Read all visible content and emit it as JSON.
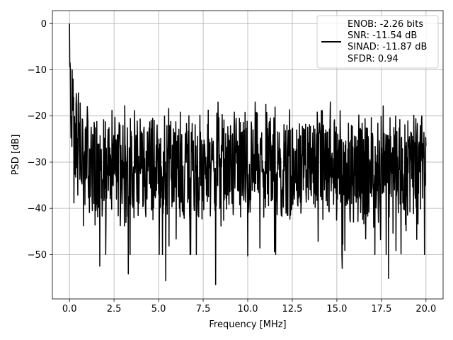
{
  "chart_data": {
    "type": "line",
    "title": "",
    "xlabel": "Frequency [MHz]",
    "ylabel": "PSD [dB]",
    "xlim": [
      -0.96,
      20.96
    ],
    "ylim": [
      -59.6,
      2.8
    ],
    "grid": true,
    "legend_position": "top-right",
    "x_ticks": [
      0.0,
      2.5,
      5.0,
      7.5,
      10.0,
      12.5,
      15.0,
      17.5,
      20.0
    ],
    "x_tick_labels": [
      "0.0",
      "2.5",
      "5.0",
      "7.5",
      "10.0",
      "12.5",
      "15.0",
      "17.5",
      "20.0"
    ],
    "y_ticks": [
      0,
      -10,
      -20,
      -30,
      -40,
      -50
    ],
    "y_tick_labels": [
      "0",
      "−10",
      "−20",
      "−30",
      "−40",
      "−50"
    ],
    "legend_lines": [
      "ENOB: -2.26 bits",
      "SNR: -11.54 dB",
      "SINAD: -11.87 dB",
      "SFDR: 0.94"
    ],
    "series": [
      {
        "color": "#000000",
        "x_range": [
          0,
          20
        ],
        "points_count": 1200,
        "peak_points": [
          {
            "x": 0.0,
            "y": 0
          },
          {
            "x": 0.05,
            "y": -10
          },
          {
            "x": 0.2,
            "y": -12
          },
          {
            "x": 0.5,
            "y": -15
          },
          {
            "x": 1.0,
            "y": -18
          },
          {
            "x": 10.0,
            "y": -15.5
          }
        ],
        "low_points": [
          {
            "x": 1.7,
            "y": -52.5
          },
          {
            "x": 3.3,
            "y": -54.2
          },
          {
            "x": 5.4,
            "y": -55.7
          },
          {
            "x": 8.2,
            "y": -56.5
          },
          {
            "x": 10.0,
            "y": -50.3
          },
          {
            "x": 15.3,
            "y": -53.0
          },
          {
            "x": 17.9,
            "y": -55.2
          }
        ],
        "median_level_db": -29,
        "spread_db": [
          -45,
          -20
        ]
      }
    ]
  }
}
